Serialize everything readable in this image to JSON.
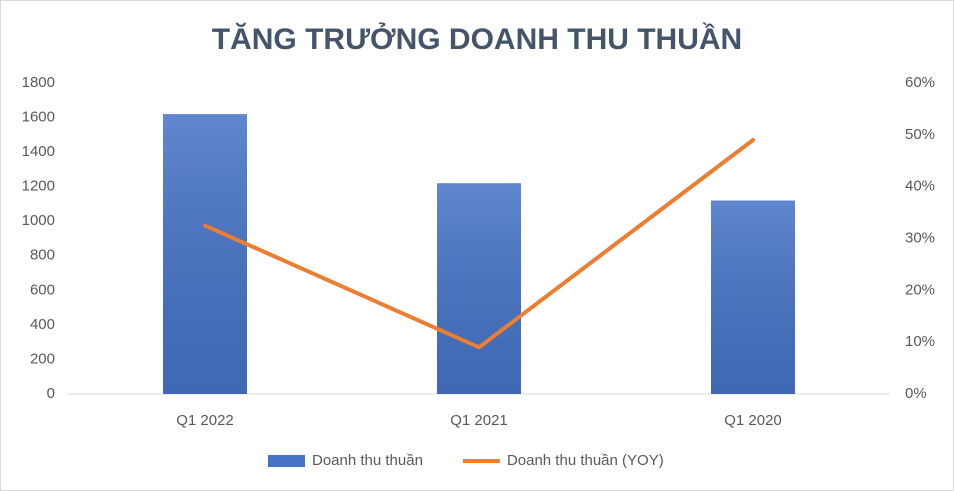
{
  "chart_data": {
    "type": "bar",
    "title": "TĂNG TRƯỞNG DOANH THU THUẦN",
    "categories": [
      "Q1 2022",
      "Q1 2021",
      "Q1 2020"
    ],
    "series": [
      {
        "name": "Doanh thu thuần",
        "type": "bar",
        "color": "#4472c4",
        "values": [
          1620,
          1220,
          1120
        ]
      },
      {
        "name": "Doanh thu thuần (YOY)",
        "type": "line",
        "axis": "y2",
        "color": "#ed7d31",
        "values": [
          32.5,
          9,
          49
        ]
      }
    ],
    "ylim": [
      0,
      1800
    ],
    "yticks": [
      0,
      200,
      400,
      600,
      800,
      1000,
      1200,
      1400,
      1600,
      1800
    ],
    "y2lim": [
      0,
      60
    ],
    "y2ticks": [
      {
        "value": 0,
        "label": "0%"
      },
      {
        "value": 10,
        "label": "10%"
      },
      {
        "value": 20,
        "label": "20%"
      },
      {
        "value": 30,
        "label": "30%"
      },
      {
        "value": 40,
        "label": "40%"
      },
      {
        "value": 50,
        "label": "50%"
      },
      {
        "value": 60,
        "label": "60%"
      }
    ],
    "grid": false,
    "legend": "bottom"
  }
}
